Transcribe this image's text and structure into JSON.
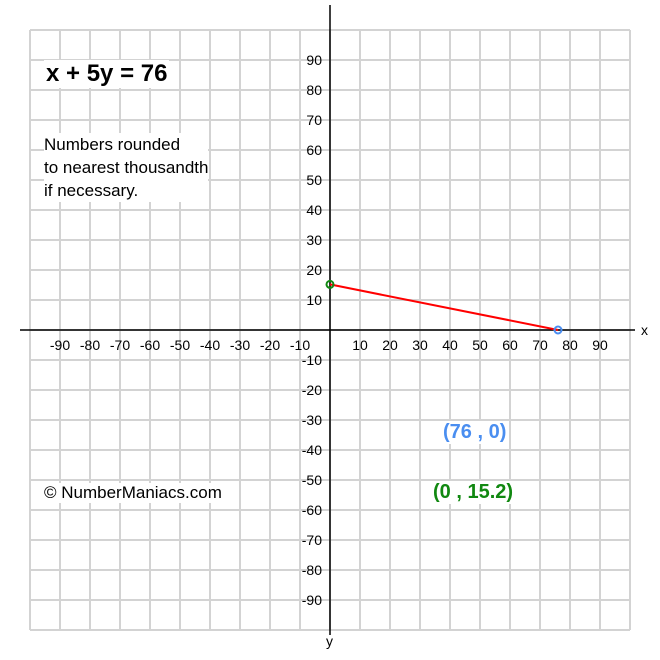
{
  "chart_data": {
    "type": "line",
    "title": "x + 5y = 76",
    "note": [
      "Numbers rounded",
      "to nearest thousandth",
      "if necessary."
    ],
    "credit": "© NumberManiacs.com",
    "xlabel": "x",
    "ylabel": "y",
    "xlim": [
      -100,
      100
    ],
    "ylim": [
      -100,
      100
    ],
    "grid": true,
    "xticks": [
      -90,
      -80,
      -70,
      -60,
      -50,
      -40,
      -30,
      -20,
      -10,
      10,
      20,
      30,
      40,
      50,
      60,
      70,
      80,
      90
    ],
    "yticks": [
      90,
      80,
      70,
      60,
      50,
      40,
      30,
      20,
      10,
      -10,
      -20,
      -30,
      -40,
      -50,
      -60,
      -70,
      -80,
      -90
    ],
    "series": [
      {
        "points": [
          [
            0,
            15.2
          ],
          [
            76,
            0
          ]
        ],
        "color": "#ff0000"
      }
    ],
    "points": [
      {
        "label": "(76 , 0)",
        "x": 76,
        "y": 0,
        "color": "#4a8ef0"
      },
      {
        "label": "(0 , 15.2)",
        "x": 0,
        "y": 15.2,
        "color": "#118811"
      }
    ]
  }
}
